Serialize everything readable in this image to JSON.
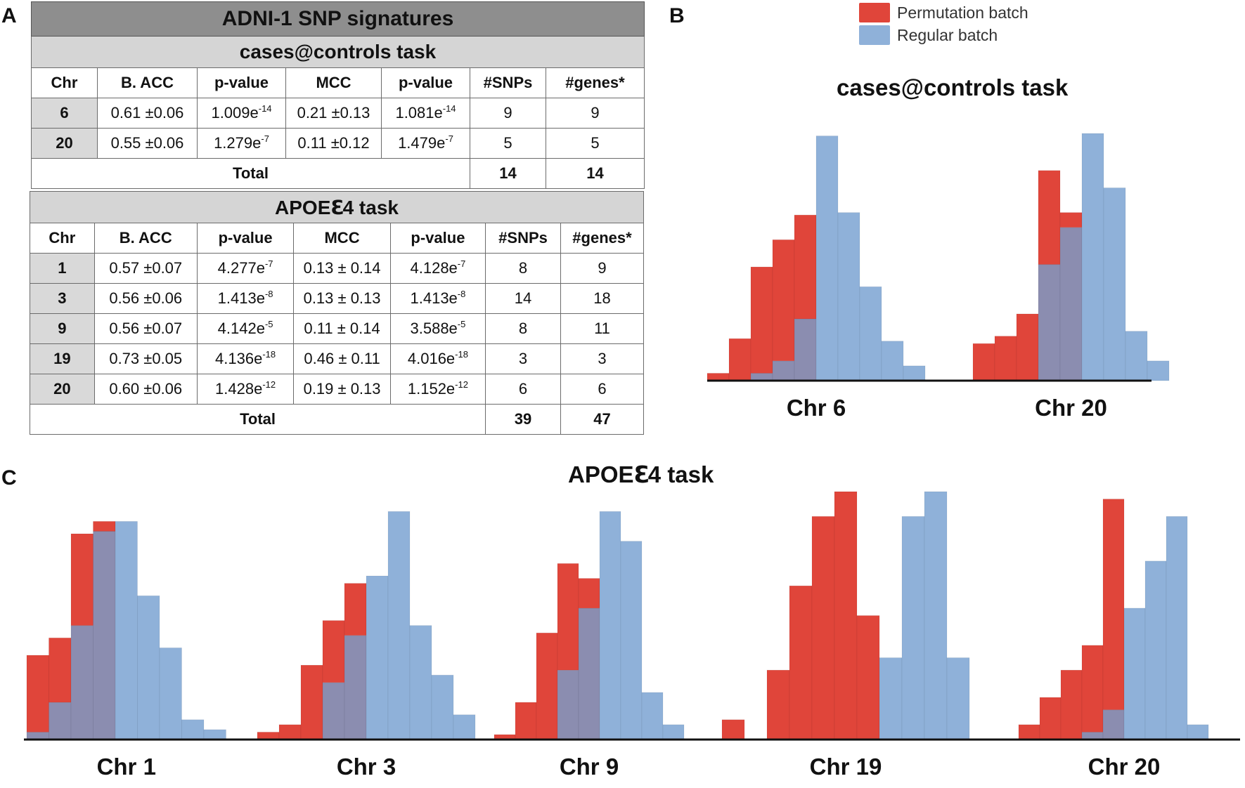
{
  "panel_labels": {
    "a": "A",
    "b": "B",
    "c": "C"
  },
  "table_title": "ADNI-1 SNP signatures",
  "columns": [
    "Chr",
    "B. ACC",
    "p-value",
    "MCC",
    "p-value",
    "#SNPs",
    "#genes*"
  ],
  "tables": [
    {
      "task": "cases@controls task",
      "rows": [
        {
          "chr": "6",
          "bacc": "0.61 ±0.06",
          "p1_mant": "1.009e",
          "p1_exp": "-14",
          "mcc": "0.21 ±0.13",
          "p2_mant": "1.081e",
          "p2_exp": "-14",
          "snps": "9",
          "genes": "9"
        },
        {
          "chr": "20",
          "bacc": "0.55 ±0.06",
          "p1_mant": "1.279e",
          "p1_exp": "-7",
          "mcc": "0.11 ±0.12",
          "p2_mant": "1.479e",
          "p2_exp": "-7",
          "snps": "5",
          "genes": "5"
        }
      ],
      "total_label": "Total",
      "total_snps": "14",
      "total_genes": "14"
    },
    {
      "task": "APOEℇ4 task",
      "rows": [
        {
          "chr": "1",
          "bacc": "0.57 ±0.07",
          "p1_mant": "4.277e",
          "p1_exp": "-7",
          "mcc": "0.13 ± 0.14",
          "p2_mant": "4.128e",
          "p2_exp": "-7",
          "snps": "8",
          "genes": "9"
        },
        {
          "chr": "3",
          "bacc": "0.56 ±0.06",
          "p1_mant": "1.413e",
          "p1_exp": "-8",
          "mcc": "0.13 ± 0.13",
          "p2_mant": "1.413e",
          "p2_exp": "-8",
          "snps": "14",
          "genes": "18"
        },
        {
          "chr": "9",
          "bacc": "0.56 ±0.07",
          "p1_mant": "4.142e",
          "p1_exp": "-5",
          "mcc": "0.11 ± 0.14",
          "p2_mant": "3.588e",
          "p2_exp": "-5",
          "snps": "8",
          "genes": "11"
        },
        {
          "chr": "19",
          "bacc": "0.73 ±0.05",
          "p1_mant": "4.136e",
          "p1_exp": "-18",
          "mcc": "0.46 ± 0.11",
          "p2_mant": "4.016e",
          "p2_exp": "-18",
          "snps": "3",
          "genes": "3"
        },
        {
          "chr": "20",
          "bacc": "0.60 ±0.06",
          "p1_mant": "1.428e",
          "p1_exp": "-12",
          "mcc": "0.19 ± 0.13",
          "p2_mant": "1.152e",
          "p2_exp": "-12",
          "snps": "6",
          "genes": "6"
        }
      ],
      "total_label": "Total",
      "total_snps": "39",
      "total_genes": "47"
    }
  ],
  "colors": {
    "permutation": "#e0453a",
    "regular": "#8fb1d9",
    "overlap": "#8b8db0"
  },
  "chart_data": [
    {
      "type": "bar",
      "subtype": "overlaid histograms",
      "title": "cases@controls task",
      "legend": [
        "Permutation batch",
        "Regular batch"
      ],
      "legend_position": "top-right",
      "ylim": [
        0,
        1
      ],
      "groups": [
        {
          "label": "Chr 6",
          "permutation": [
            0.03,
            0.17,
            0.46,
            0.57,
            0.67,
            0.0,
            0.0,
            0.0,
            0.0,
            0.0
          ],
          "regular": [
            0.0,
            0.0,
            0.03,
            0.08,
            0.25,
            0.99,
            0.68,
            0.38,
            0.16,
            0.06
          ]
        },
        {
          "label": "Chr 20",
          "permutation": [
            0.15,
            0.18,
            0.27,
            0.85,
            0.68,
            0.0,
            0.0,
            0.0,
            0.0
          ],
          "regular": [
            0.0,
            0.0,
            0.0,
            0.47,
            0.62,
            1.0,
            0.78,
            0.2,
            0.08
          ]
        }
      ]
    },
    {
      "type": "bar",
      "subtype": "overlaid histograms",
      "title": "APOEℇ4 task",
      "ylim": [
        0,
        1
      ],
      "groups": [
        {
          "label": "Chr 1",
          "permutation": [
            0.34,
            0.41,
            0.83,
            0.88,
            0.0,
            0.0,
            0.0,
            0.0,
            0.0
          ],
          "regular": [
            0.03,
            0.15,
            0.46,
            0.84,
            0.88,
            0.58,
            0.37,
            0.08,
            0.04
          ]
        },
        {
          "label": "Chr 3",
          "permutation": [
            0.03,
            0.06,
            0.3,
            0.48,
            0.63,
            0.0,
            0.0,
            0.0,
            0.0,
            0.0
          ],
          "regular": [
            0.0,
            0.0,
            0.0,
            0.23,
            0.42,
            0.66,
            0.92,
            0.46,
            0.26,
            0.1
          ]
        },
        {
          "label": "Chr 9",
          "permutation": [
            0.02,
            0.15,
            0.43,
            0.71,
            0.65,
            0.0,
            0.0,
            0.0,
            0.0
          ],
          "regular": [
            0.0,
            0.0,
            0.0,
            0.28,
            0.53,
            0.92,
            0.8,
            0.19,
            0.06
          ]
        },
        {
          "label": "Chr 19",
          "permutation": [
            0.08,
            0.0,
            0.28,
            0.62,
            0.9,
            1.0,
            0.5,
            0.0,
            0.0,
            0.0,
            0.0
          ],
          "regular": [
            0.0,
            0.0,
            0.0,
            0.0,
            0.0,
            0.0,
            0.0,
            0.33,
            0.9,
            1.0,
            0.33
          ]
        },
        {
          "label": "Chr 20",
          "permutation": [
            0.06,
            0.17,
            0.28,
            0.38,
            0.97,
            0.0,
            0.0,
            0.0,
            0.0,
            0.0
          ],
          "regular": [
            0.0,
            0.0,
            0.0,
            0.03,
            0.12,
            0.53,
            0.72,
            0.9,
            0.06,
            0.0
          ]
        }
      ]
    }
  ]
}
